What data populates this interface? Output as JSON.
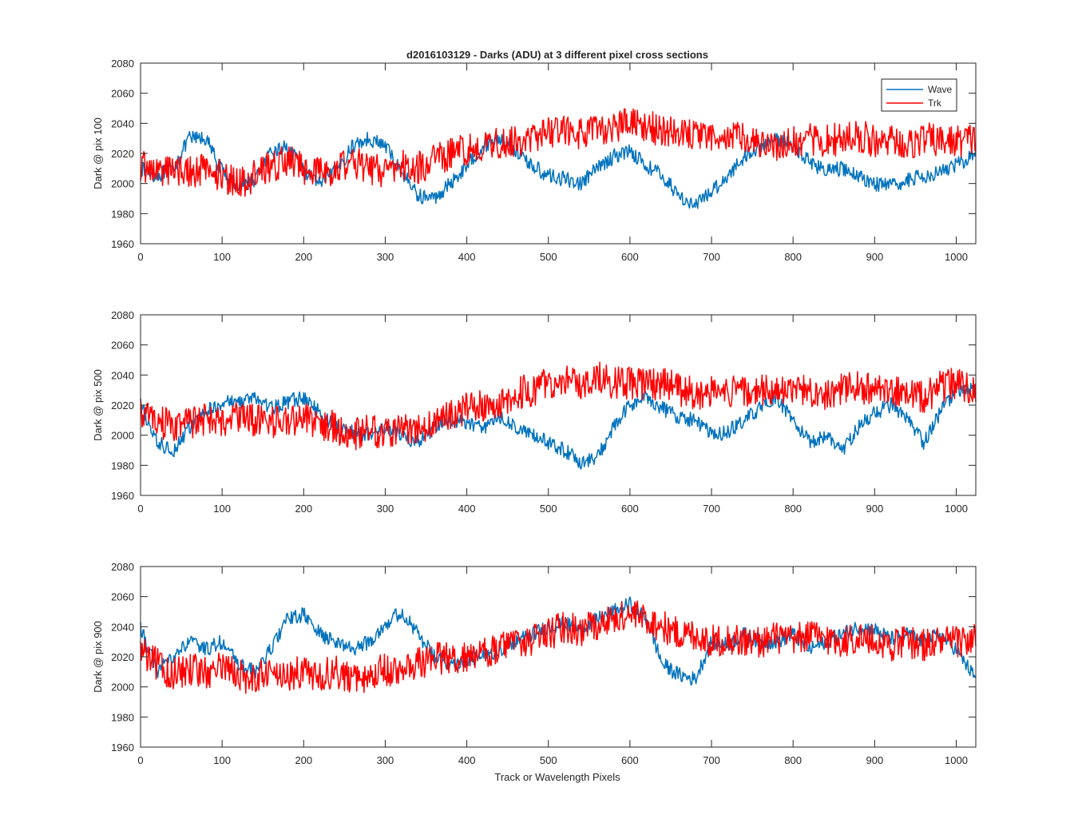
{
  "figure": {
    "title": "d2016103129 - Darks (ADU) at 3 different pixel cross sections",
    "xlabel": "Track or Wavelength Pixels"
  },
  "colors": {
    "wave": "#0072BD",
    "trk": "#FF0000",
    "axis": "#262626"
  },
  "chart_data": [
    {
      "type": "line",
      "title": "d2016103129 - Darks (ADU) at 3 different pixel cross sections",
      "xlabel": "",
      "ylabel": "Dark @ pix 100",
      "xlim": [
        0,
        1024
      ],
      "ylim": [
        1960,
        2080
      ],
      "xticks": [
        0,
        100,
        200,
        300,
        400,
        500,
        600,
        700,
        800,
        900,
        1000
      ],
      "yticks": [
        1960,
        1980,
        2000,
        2020,
        2040,
        2060,
        2080
      ],
      "grid": false,
      "legend": "top-right",
      "series": [
        {
          "name": "Wave",
          "x": [
            0,
            20,
            40,
            60,
            80,
            100,
            120,
            140,
            160,
            180,
            200,
            220,
            240,
            260,
            280,
            300,
            320,
            340,
            360,
            380,
            400,
            420,
            440,
            460,
            480,
            500,
            520,
            540,
            560,
            580,
            600,
            620,
            640,
            660,
            680,
            700,
            720,
            740,
            760,
            780,
            800,
            820,
            840,
            860,
            880,
            900,
            920,
            940,
            960,
            980,
            1000,
            1024
          ],
          "y": [
            2010,
            2005,
            2010,
            2030,
            2030,
            2008,
            1998,
            2003,
            2020,
            2025,
            2008,
            2000,
            2008,
            2025,
            2030,
            2025,
            2008,
            1992,
            1990,
            2000,
            2012,
            2025,
            2030,
            2022,
            2012,
            2005,
            2003,
            2000,
            2010,
            2018,
            2022,
            2012,
            2005,
            1992,
            1985,
            1995,
            2005,
            2018,
            2025,
            2030,
            2025,
            2015,
            2008,
            2010,
            2005,
            2000,
            1998,
            2002,
            2005,
            2008,
            2012,
            2020
          ]
        },
        {
          "name": "Trk",
          "x": [
            0,
            20,
            40,
            60,
            80,
            100,
            120,
            140,
            160,
            180,
            200,
            220,
            240,
            260,
            280,
            300,
            320,
            340,
            360,
            380,
            400,
            420,
            440,
            460,
            480,
            500,
            520,
            540,
            560,
            580,
            600,
            620,
            640,
            660,
            680,
            700,
            720,
            740,
            760,
            780,
            800,
            820,
            840,
            860,
            880,
            900,
            920,
            940,
            960,
            980,
            1000,
            1024
          ],
          "y": [
            2012,
            2008,
            2010,
            2008,
            2010,
            2005,
            2000,
            2005,
            2012,
            2015,
            2010,
            2008,
            2010,
            2015,
            2010,
            2008,
            2012,
            2010,
            2015,
            2020,
            2022,
            2025,
            2028,
            2028,
            2030,
            2035,
            2035,
            2033,
            2035,
            2038,
            2040,
            2038,
            2035,
            2035,
            2030,
            2030,
            2033,
            2030,
            2028,
            2025,
            2028,
            2030,
            2028,
            2030,
            2032,
            2028,
            2030,
            2025,
            2030,
            2028,
            2028,
            2030
          ]
        }
      ]
    },
    {
      "type": "line",
      "xlabel": "",
      "ylabel": "Dark @ pix 500",
      "xlim": [
        0,
        1024
      ],
      "ylim": [
        1960,
        2080
      ],
      "xticks": [
        0,
        100,
        200,
        300,
        400,
        500,
        600,
        700,
        800,
        900,
        1000
      ],
      "yticks": [
        1960,
        1980,
        2000,
        2020,
        2040,
        2060,
        2080
      ],
      "grid": false,
      "series": [
        {
          "name": "Wave",
          "x": [
            0,
            20,
            40,
            60,
            80,
            100,
            120,
            140,
            160,
            180,
            200,
            220,
            240,
            260,
            280,
            300,
            320,
            340,
            360,
            380,
            400,
            420,
            440,
            460,
            480,
            500,
            520,
            540,
            560,
            580,
            600,
            620,
            640,
            660,
            680,
            700,
            720,
            740,
            760,
            780,
            800,
            820,
            840,
            860,
            880,
            900,
            920,
            940,
            960,
            980,
            1000,
            1024
          ],
          "y": [
            2020,
            1995,
            1990,
            2005,
            2015,
            2022,
            2022,
            2025,
            2018,
            2022,
            2025,
            2015,
            2005,
            2002,
            2000,
            2005,
            2000,
            1995,
            2005,
            2010,
            2008,
            2005,
            2012,
            2005,
            2000,
            1995,
            1990,
            1982,
            1985,
            2005,
            2020,
            2025,
            2018,
            2012,
            2010,
            2000,
            2002,
            2010,
            2018,
            2025,
            2010,
            1995,
            2000,
            1990,
            2005,
            2015,
            2020,
            2010,
            1995,
            2015,
            2030,
            2030
          ]
        },
        {
          "name": "Trk",
          "x": [
            0,
            20,
            40,
            60,
            80,
            100,
            120,
            140,
            160,
            180,
            200,
            220,
            240,
            260,
            280,
            300,
            320,
            340,
            360,
            380,
            400,
            420,
            440,
            460,
            480,
            500,
            520,
            540,
            560,
            580,
            600,
            620,
            640,
            660,
            680,
            700,
            720,
            740,
            760,
            780,
            800,
            820,
            840,
            860,
            880,
            900,
            920,
            940,
            960,
            980,
            1000,
            1024
          ],
          "y": [
            2015,
            2010,
            2005,
            2008,
            2010,
            2008,
            2012,
            2010,
            2008,
            2010,
            2012,
            2008,
            2005,
            2000,
            2005,
            2000,
            2003,
            2005,
            2008,
            2012,
            2018,
            2020,
            2022,
            2028,
            2030,
            2035,
            2038,
            2035,
            2038,
            2035,
            2035,
            2033,
            2035,
            2030,
            2028,
            2028,
            2030,
            2028,
            2030,
            2028,
            2030,
            2030,
            2028,
            2030,
            2032,
            2030,
            2028,
            2030,
            2025,
            2032,
            2035,
            2030
          ]
        }
      ]
    },
    {
      "type": "line",
      "xlabel": "Track or Wavelength Pixels",
      "ylabel": "Dark @ pix 900",
      "xlim": [
        0,
        1024
      ],
      "ylim": [
        1960,
        2080
      ],
      "xticks": [
        0,
        100,
        200,
        300,
        400,
        500,
        600,
        700,
        800,
        900,
        1000
      ],
      "yticks": [
        1960,
        1980,
        2000,
        2020,
        2040,
        2060,
        2080
      ],
      "grid": false,
      "series": [
        {
          "name": "Wave",
          "x": [
            0,
            20,
            40,
            60,
            80,
            100,
            120,
            140,
            160,
            180,
            200,
            220,
            240,
            260,
            280,
            300,
            320,
            340,
            360,
            380,
            400,
            420,
            440,
            460,
            480,
            500,
            520,
            540,
            560,
            580,
            600,
            620,
            640,
            660,
            680,
            700,
            720,
            740,
            760,
            780,
            800,
            820,
            840,
            860,
            880,
            900,
            920,
            940,
            960,
            980,
            1000,
            1024
          ],
          "y": [
            2040,
            2010,
            2020,
            2030,
            2025,
            2030,
            2015,
            2010,
            2025,
            2045,
            2048,
            2035,
            2030,
            2025,
            2030,
            2042,
            2050,
            2035,
            2020,
            2015,
            2018,
            2020,
            2025,
            2030,
            2035,
            2040,
            2042,
            2038,
            2045,
            2050,
            2055,
            2045,
            2015,
            2008,
            2005,
            2030,
            2028,
            2035,
            2030,
            2030,
            2035,
            2025,
            2030,
            2035,
            2040,
            2038,
            2032,
            2035,
            2030,
            2035,
            2025,
            2005
          ]
        },
        {
          "name": "Trk",
          "x": [
            0,
            20,
            40,
            60,
            80,
            100,
            120,
            140,
            160,
            180,
            200,
            220,
            240,
            260,
            280,
            300,
            320,
            340,
            360,
            380,
            400,
            420,
            440,
            460,
            480,
            500,
            520,
            540,
            560,
            580,
            600,
            620,
            640,
            660,
            680,
            700,
            720,
            740,
            760,
            780,
            800,
            820,
            840,
            860,
            880,
            900,
            920,
            940,
            960,
            980,
            1000,
            1024
          ],
          "y": [
            2025,
            2015,
            2008,
            2012,
            2010,
            2012,
            2008,
            2005,
            2010,
            2008,
            2010,
            2008,
            2010,
            2005,
            2008,
            2012,
            2010,
            2015,
            2018,
            2020,
            2020,
            2022,
            2025,
            2028,
            2030,
            2035,
            2040,
            2038,
            2042,
            2045,
            2048,
            2045,
            2040,
            2035,
            2035,
            2030,
            2032,
            2030,
            2030,
            2033,
            2030,
            2035,
            2032,
            2030,
            2033,
            2030,
            2028,
            2030,
            2028,
            2030,
            2030,
            2032
          ]
        }
      ]
    }
  ]
}
